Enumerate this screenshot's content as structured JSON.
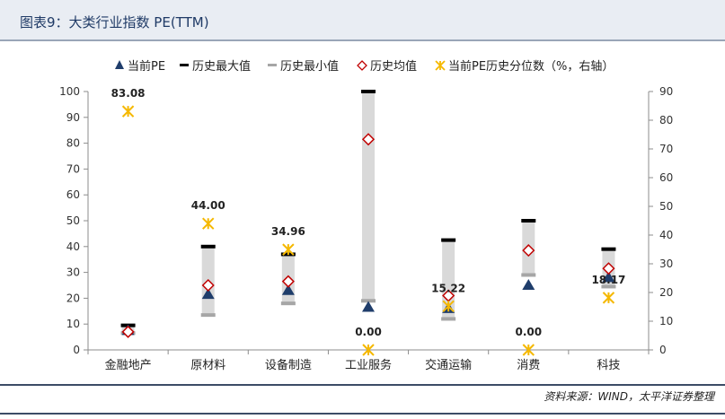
{
  "header": {
    "title": "图表9：大类行业指数 PE(TTM)"
  },
  "footer": {
    "source": "资料来源：WIND，太平洋证券整理"
  },
  "legend": [
    {
      "key": "current",
      "label": "当前PE",
      "color": "#1f3d6b",
      "icon": "triangle-icon"
    },
    {
      "key": "max",
      "label": "历史最大值",
      "color": "#000000",
      "icon": "dash-black-icon"
    },
    {
      "key": "min",
      "label": "历史最小值",
      "color": "#a6a6a6",
      "icon": "dash-gray-icon"
    },
    {
      "key": "mean",
      "label": "历史均值",
      "color": "#c00000",
      "icon": "diamond-icon"
    },
    {
      "key": "pct",
      "label": "当前PE历史分位数（%，右轴）",
      "color": "#f5b800",
      "icon": "star-icon"
    }
  ],
  "chart_data": {
    "type": "range-scatter",
    "categories": [
      "金融地产",
      "原材料",
      "设备制造",
      "工业服务",
      "交通运输",
      "消费",
      "科技"
    ],
    "series": [
      {
        "name": "当前PE",
        "values": [
          7.5,
          21.5,
          23.0,
          16.5,
          16.0,
          25.0,
          28.0
        ]
      },
      {
        "name": "历史最大值",
        "values": [
          9.5,
          40.0,
          37.0,
          100.0,
          42.5,
          50.0,
          39.0
        ]
      },
      {
        "name": "历史最小值",
        "values": [
          6.5,
          13.5,
          18.0,
          19.0,
          12.0,
          29.0,
          24.5
        ]
      },
      {
        "name": "历史均值",
        "values": [
          7.0,
          25.0,
          26.5,
          81.5,
          21.0,
          38.5,
          31.5
        ]
      },
      {
        "name": "当前PE历史分位数（%，右轴）",
        "axis": "right",
        "values": [
          83.08,
          44.0,
          34.96,
          0.0,
          15.22,
          0.0,
          18.17
        ]
      }
    ],
    "data_labels": [
      "83.08",
      "44.00",
      "34.96",
      "0.00",
      "15.22",
      "0.00",
      "18.17"
    ],
    "y_left": {
      "min": 0,
      "max": 100,
      "ticks": [
        "0",
        "10",
        "20",
        "30",
        "40",
        "50",
        "60",
        "70",
        "80",
        "90",
        "100"
      ]
    },
    "y_right": {
      "min": 0,
      "max": 90,
      "ticks": [
        "0",
        "10",
        "20",
        "30",
        "40",
        "50",
        "60",
        "70",
        "80",
        "90"
      ]
    },
    "grid": false,
    "legend_position": "top"
  }
}
